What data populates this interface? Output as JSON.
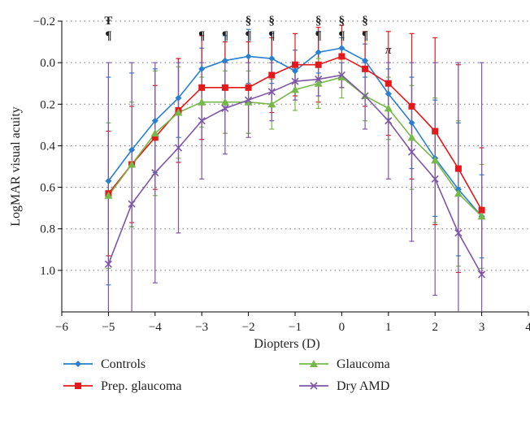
{
  "chart_data": {
    "type": "line",
    "xlabel": "Diopters (D)",
    "ylabel": "LogMAR visual acuity",
    "xlim": [
      -6,
      4
    ],
    "ylim": [
      -0.2,
      1.2
    ],
    "y_inverted": true,
    "x_ticks": [
      -6,
      -5,
      -4,
      -3,
      -2,
      -1,
      0,
      1,
      2,
      3,
      4
    ],
    "x_tick_labels": [
      "−6",
      "−5",
      "−4",
      "−3",
      "−2",
      "−1",
      "0",
      "1",
      "2",
      "3",
      "4"
    ],
    "y_ticks": [
      -0.2,
      0,
      0.2,
      0.4,
      0.6,
      0.8,
      1.0
    ],
    "y_tick_labels": [
      "−0.2",
      "0.0",
      "0.2",
      "0.4",
      "0.6",
      "0.8",
      "1.0"
    ],
    "grid": "horizontal dotted",
    "legend_position": "bottom",
    "x": [
      -5,
      -4.5,
      -4,
      -3.5,
      -3,
      -2.5,
      -2,
      -1.5,
      -1,
      -0.5,
      0,
      0.5,
      1,
      1.5,
      2,
      2.5,
      3
    ],
    "series": [
      {
        "name": "Controls",
        "color": "#2a7fd0",
        "marker": "diamond",
        "values": [
          0.57,
          0.42,
          0.28,
          0.17,
          0.03,
          -0.01,
          -0.03,
          -0.02,
          0.04,
          -0.05,
          -0.07,
          -0.01,
          0.15,
          0.29,
          0.46,
          0.61,
          0.74
        ],
        "err_low": [
          0.5,
          0.37,
          0.25,
          0.19,
          0.1,
          0.12,
          0.13,
          0.12,
          0.1,
          0.1,
          0.05,
          0.08,
          0.12,
          0.22,
          0.28,
          0.32,
          0.2
        ],
        "err_high": [
          0.5,
          0.37,
          0.25,
          0.19,
          0.1,
          0.12,
          0.13,
          0.12,
          0.1,
          0.1,
          0.05,
          0.08,
          0.12,
          0.22,
          0.28,
          0.32,
          0.2
        ]
      },
      {
        "name": "Prep. glaucoma",
        "color": "#e31a1c",
        "marker": "square",
        "values": [
          0.63,
          0.49,
          0.36,
          0.23,
          0.12,
          0.12,
          0.12,
          0.06,
          0.01,
          0.01,
          -0.03,
          0.03,
          0.1,
          0.21,
          0.33,
          0.51,
          0.71
        ],
        "err_low": [
          0.3,
          0.28,
          0.25,
          0.25,
          0.25,
          0.22,
          0.22,
          0.18,
          0.15,
          0.18,
          0.15,
          0.18,
          0.25,
          0.35,
          0.45,
          0.5,
          0.3
        ],
        "err_high": [
          0.3,
          0.28,
          0.25,
          0.25,
          0.25,
          0.22,
          0.22,
          0.18,
          0.15,
          0.18,
          0.15,
          0.18,
          0.25,
          0.35,
          0.45,
          0.5,
          0.3
        ]
      },
      {
        "name": "Glaucoma",
        "color": "#77b84a",
        "marker": "triangle",
        "values": [
          0.64,
          0.49,
          0.34,
          0.24,
          0.19,
          0.19,
          0.19,
          0.2,
          0.13,
          0.1,
          0.07,
          0.16,
          0.22,
          0.36,
          0.47,
          0.63,
          0.74
        ],
        "err_low": [
          0.35,
          0.3,
          0.3,
          0.22,
          0.12,
          0.15,
          0.15,
          0.12,
          0.1,
          0.12,
          0.1,
          0.12,
          0.15,
          0.25,
          0.3,
          0.35,
          0.25
        ],
        "err_high": [
          0.35,
          0.3,
          0.3,
          0.22,
          0.12,
          0.15,
          0.15,
          0.12,
          0.1,
          0.12,
          0.1,
          0.12,
          0.15,
          0.25,
          0.3,
          0.35,
          0.25
        ]
      },
      {
        "name": "Dry AMD",
        "color": "#7e57a8",
        "marker": "x",
        "values": [
          0.97,
          0.68,
          0.53,
          0.41,
          0.28,
          0.22,
          0.18,
          0.14,
          0.09,
          0.08,
          0.06,
          0.16,
          0.28,
          0.43,
          0.56,
          0.82,
          1.02
        ],
        "err_low": [
          0.97,
          0.68,
          0.53,
          0.41,
          0.28,
          0.22,
          0.18,
          0.14,
          0.09,
          0.08,
          0.06,
          0.16,
          0.28,
          0.43,
          0.56,
          0.82,
          1.02
        ],
        "err_high": [
          0.97,
          0.68,
          0.53,
          0.41,
          0.28,
          0.22,
          0.18,
          0.14,
          0.09,
          0.08,
          0.06,
          0.16,
          0.28,
          0.43,
          0.56,
          0.82,
          1.02
        ]
      }
    ],
    "annotations": [
      {
        "x": -5,
        "rows": [
          "Ŧ",
          "¶"
        ]
      },
      {
        "x": -3,
        "rows": [
          "¶"
        ]
      },
      {
        "x": -2.5,
        "rows": [
          "¶"
        ]
      },
      {
        "x": -2,
        "rows": [
          "§",
          "¶"
        ]
      },
      {
        "x": -1.5,
        "rows": [
          "§",
          "¶"
        ]
      },
      {
        "x": -0.5,
        "rows": [
          "§",
          "¶"
        ]
      },
      {
        "x": 0,
        "rows": [
          "§",
          "¶"
        ]
      },
      {
        "x": 0.5,
        "rows": [
          "§",
          "¶"
        ]
      },
      {
        "x": 1,
        "rows": [
          "π"
        ]
      }
    ]
  }
}
